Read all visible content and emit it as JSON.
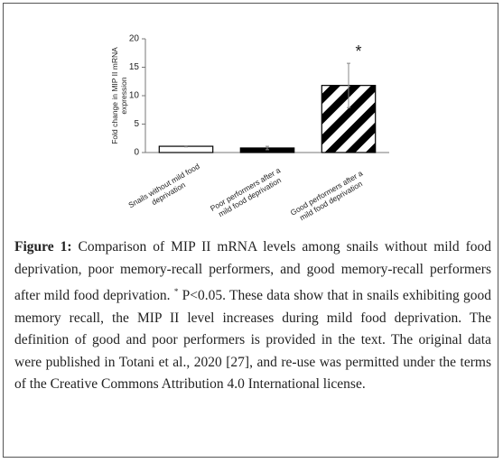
{
  "chart_data": {
    "type": "bar",
    "ylabel": "Fold change in MIP II  mRNA expression",
    "categories": [
      "Snails without mild food deprivation",
      "Poor performers after a mild food deprivation",
      "Good performers after a mild food deprivation"
    ],
    "values": [
      1.1,
      0.8,
      11.8
    ],
    "errors": [
      0.1,
      0.3,
      3.9
    ],
    "fills": [
      "white",
      "black",
      "hatched"
    ],
    "ylim": [
      0,
      20
    ],
    "yticks": [
      0,
      5,
      10,
      15,
      20
    ],
    "annotation": "*"
  },
  "caption": {
    "label": "Figure 1:",
    "text_1": "Comparison of MIP II mRNA levels among snails without mild food deprivation, poor memory-recall performers, and good memory-recall performers after mild food deprivation.",
    "superscript": "*",
    "text_2": "P<0.05. These data show that in snails exhibiting good memory recall, the MIP II level increases during mild food deprivation. The definition of good and poor performers is provided in the text. The original data were published in Totani et al., 2020 [27], and re-use was permitted under the terms of the Creative Commons Attribution 4.0 International license."
  }
}
